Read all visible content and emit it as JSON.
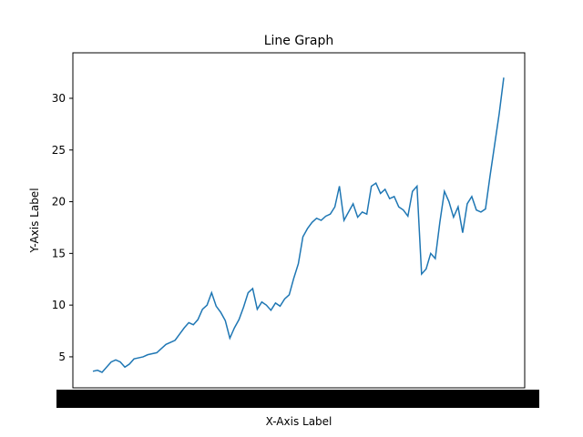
{
  "chart_data": {
    "type": "line",
    "title": "Line Graph",
    "x_label": "X-Axis Label",
    "y_label": "Y-Axis Label",
    "categories": [
      null,
      null,
      null,
      null,
      null,
      null,
      null,
      null,
      null,
      null,
      null,
      null,
      null,
      null,
      null,
      null,
      null,
      null,
      null,
      null,
      null,
      null,
      null,
      null,
      null,
      null,
      null,
      null,
      null,
      null,
      null,
      null,
      null,
      null,
      null,
      null,
      null,
      null,
      null,
      null,
      null,
      null,
      null,
      null,
      null,
      null,
      null,
      null,
      null,
      null,
      null,
      null,
      null,
      null,
      null,
      null,
      null,
      null,
      null,
      null,
      null,
      null,
      null,
      null,
      null,
      null,
      null,
      null,
      null,
      null,
      null,
      null,
      null,
      null,
      null,
      null,
      null,
      null,
      null,
      null,
      null,
      null,
      null,
      null,
      null,
      null,
      null,
      null,
      null,
      null,
      null
    ],
    "series": [
      {
        "color": "#1f77b4",
        "values": [
          3.6,
          3.7,
          3.5,
          4.0,
          4.5,
          4.7,
          4.5,
          4.0,
          4.3,
          4.8,
          4.9,
          5.0,
          5.2,
          5.3,
          5.4,
          5.8,
          6.2,
          6.4,
          6.6,
          7.2,
          7.8,
          8.3,
          8.1,
          8.6,
          9.6,
          10.0,
          11.2,
          9.9,
          9.3,
          8.5,
          6.8,
          7.8,
          8.6,
          9.8,
          11.2,
          11.6,
          9.6,
          10.3,
          10.0,
          9.5,
          10.2,
          9.9,
          10.6,
          11.0,
          12.6,
          14.0,
          16.6,
          17.4,
          18.0,
          18.4,
          18.2,
          18.6,
          18.8,
          19.5,
          21.5,
          18.2,
          19.0,
          19.8,
          18.5,
          19.0,
          18.8,
          21.5,
          21.8,
          20.8,
          21.2,
          20.3,
          20.5,
          19.5,
          19.2,
          18.6,
          21.0,
          21.5,
          13.0,
          13.5,
          15.0,
          14.5,
          18.0,
          21.0,
          20.0,
          18.5,
          19.5,
          17.0,
          19.8,
          20.5,
          19.2,
          19.0,
          19.3,
          22.5,
          25.5,
          28.5,
          32.0
        ]
      }
    ],
    "ylim": [
      2.0,
      34.4
    ],
    "yticks": [
      5,
      10,
      15,
      20,
      25,
      30
    ]
  }
}
